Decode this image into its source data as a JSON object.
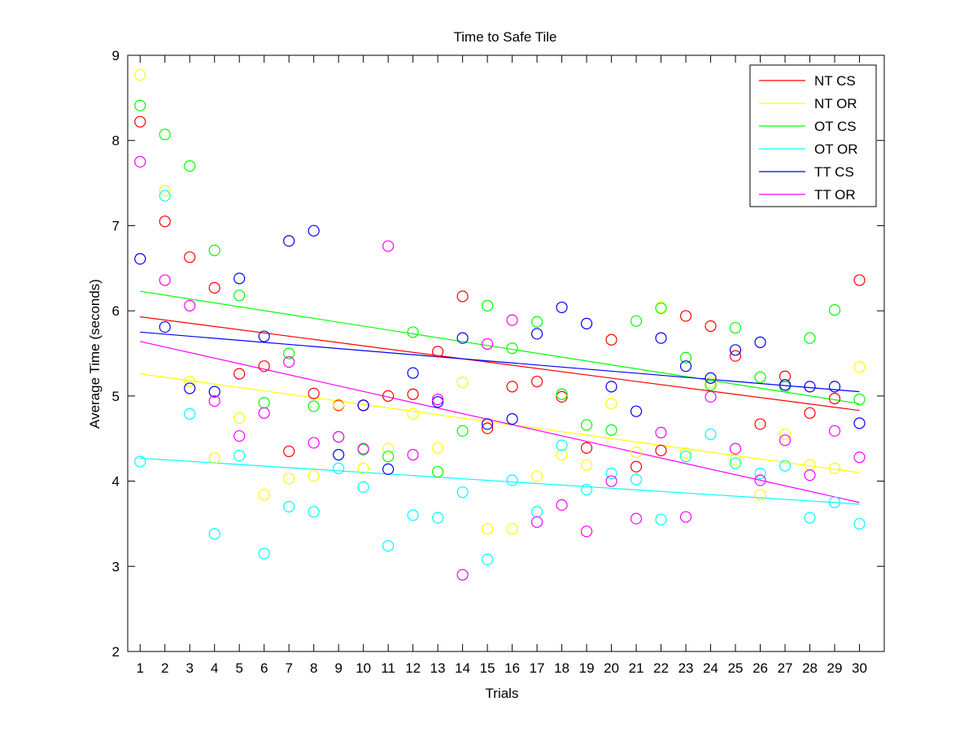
{
  "chart_data": {
    "type": "scatter",
    "title": "Time to Safe Tile",
    "xlabel": "Trials",
    "ylabel": "Average Time (seconds)",
    "xlim": [
      0.5,
      31
    ],
    "ylim": [
      2,
      9
    ],
    "xticks": [
      1,
      2,
      3,
      4,
      5,
      6,
      7,
      8,
      9,
      10,
      11,
      12,
      13,
      14,
      15,
      16,
      17,
      18,
      19,
      20,
      21,
      22,
      23,
      24,
      25,
      26,
      27,
      28,
      29,
      30
    ],
    "yticks": [
      2,
      3,
      4,
      5,
      6,
      7,
      8,
      9
    ],
    "grid": false,
    "legend_position": "top-right",
    "x": [
      1,
      2,
      3,
      4,
      5,
      6,
      7,
      8,
      9,
      10,
      11,
      12,
      13,
      14,
      15,
      16,
      17,
      18,
      19,
      20,
      21,
      22,
      23,
      24,
      25,
      26,
      27,
      28,
      29,
      30
    ],
    "series": [
      {
        "name": "NT CS",
        "color": "#ff0000",
        "values": [
          8.22,
          7.05,
          6.63,
          6.27,
          5.26,
          5.35,
          4.35,
          5.03,
          4.89,
          4.89,
          5.0,
          5.02,
          5.52,
          6.17,
          4.62,
          5.11,
          5.17,
          4.99,
          4.39,
          5.66,
          4.17,
          4.36,
          5.94,
          5.82,
          5.47,
          4.67,
          5.23,
          4.8,
          4.97,
          6.36
        ],
        "trend": [
          5.93,
          4.83
        ]
      },
      {
        "name": "NT OR",
        "color": "#ffff00",
        "values": [
          8.77,
          7.41,
          5.17,
          4.27,
          4.74,
          3.84,
          4.03,
          4.06,
          4.9,
          4.15,
          4.38,
          4.79,
          4.39,
          5.16,
          3.44,
          3.44,
          4.06,
          4.31,
          4.19,
          4.91,
          4.34,
          6.04,
          4.33,
          5.16,
          4.25,
          3.84,
          4.55,
          4.19,
          4.15,
          5.34
        ],
        "trend": [
          5.26,
          4.1
        ]
      },
      {
        "name": "OT CS",
        "color": "#00ff00",
        "values": [
          8.41,
          8.07,
          7.7,
          6.71,
          6.18,
          4.92,
          5.5,
          4.88,
          4.52,
          4.37,
          4.29,
          5.75,
          4.11,
          4.59,
          6.06,
          5.56,
          5.87,
          5.02,
          4.66,
          4.6,
          5.88,
          6.03,
          5.45,
          5.13,
          5.8,
          5.22,
          5.11,
          5.68,
          6.01,
          4.96
        ],
        "trend": [
          6.23,
          4.91
        ]
      },
      {
        "name": "OT OR",
        "color": "#00ffff",
        "values": [
          4.23,
          7.35,
          4.79,
          3.38,
          4.3,
          3.15,
          3.7,
          3.64,
          4.15,
          3.93,
          3.24,
          3.6,
          3.57,
          3.87,
          3.08,
          4.01,
          3.64,
          4.42,
          3.9,
          4.09,
          4.02,
          3.55,
          4.29,
          4.55,
          4.21,
          4.09,
          4.18,
          3.57,
          3.75,
          3.5
        ],
        "trend": [
          4.27,
          3.73
        ]
      },
      {
        "name": "TT CS",
        "color": "#0000ff",
        "values": [
          6.61,
          5.81,
          5.09,
          5.05,
          6.38,
          5.7,
          6.82,
          6.94,
          4.31,
          4.89,
          4.14,
          5.27,
          4.93,
          5.68,
          4.67,
          4.73,
          5.73,
          6.04,
          5.85,
          5.11,
          4.82,
          5.68,
          5.35,
          5.21,
          5.54,
          5.63,
          5.13,
          5.11,
          5.11,
          4.68
        ],
        "trend": [
          5.75,
          5.05
        ]
      },
      {
        "name": "TT OR",
        "color": "#ff00ff",
        "values": [
          7.75,
          6.36,
          6.06,
          4.94,
          4.53,
          4.8,
          5.4,
          4.45,
          4.52,
          4.38,
          6.76,
          4.31,
          4.96,
          2.9,
          5.61,
          5.89,
          3.52,
          3.72,
          3.41,
          4.0,
          3.56,
          4.57,
          3.58,
          4.99,
          4.38,
          4.01,
          4.48,
          4.07,
          4.59,
          4.28
        ],
        "trend": [
          5.64,
          3.75
        ]
      }
    ]
  }
}
